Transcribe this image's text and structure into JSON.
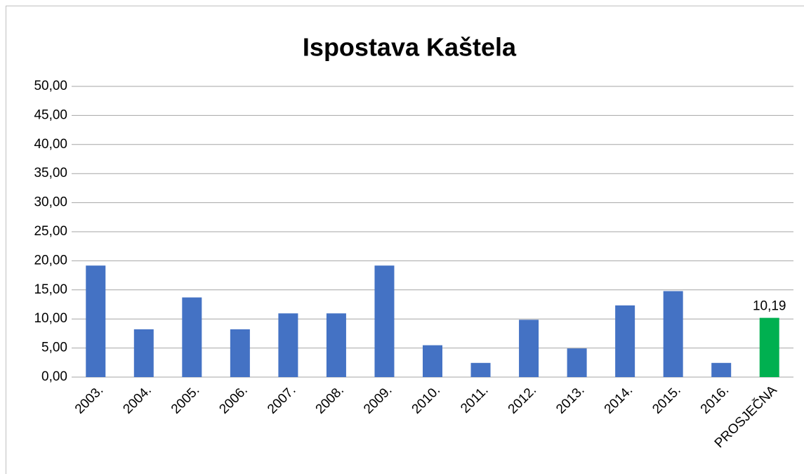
{
  "chart_data": {
    "type": "bar",
    "title": "Ispostava Kaštela",
    "categories": [
      "2003.",
      "2004.",
      "2005.",
      "2006.",
      "2007.",
      "2008.",
      "2009.",
      "2010.",
      "2011.",
      "2012.",
      "2013.",
      "2014.",
      "2015.",
      "2016.",
      "PROSJEČNA"
    ],
    "values": [
      19.18,
      8.22,
      13.7,
      8.22,
      10.96,
      10.96,
      19.18,
      5.48,
      2.44,
      9.86,
      4.93,
      12.33,
      14.79,
      2.44,
      10.19
    ],
    "value_labels": [
      null,
      null,
      null,
      null,
      null,
      null,
      null,
      null,
      null,
      null,
      null,
      null,
      null,
      null,
      "10,19"
    ],
    "colors": [
      "#4472c4",
      "#4472c4",
      "#4472c4",
      "#4472c4",
      "#4472c4",
      "#4472c4",
      "#4472c4",
      "#4472c4",
      "#4472c4",
      "#4472c4",
      "#4472c4",
      "#4472c4",
      "#4472c4",
      "#4472c4",
      "#00b050"
    ],
    "ylim": [
      0,
      50
    ],
    "yticks": [
      {
        "value": 0,
        "label": "0,00"
      },
      {
        "value": 5,
        "label": "5,00"
      },
      {
        "value": 10,
        "label": "10,00"
      },
      {
        "value": 15,
        "label": "15,00"
      },
      {
        "value": 20,
        "label": "20,00"
      },
      {
        "value": 25,
        "label": "25,00"
      },
      {
        "value": 30,
        "label": "30,00"
      },
      {
        "value": 35,
        "label": "35,00"
      },
      {
        "value": 40,
        "label": "40,00"
      },
      {
        "value": 45,
        "label": "45,00"
      },
      {
        "value": 50,
        "label": "50,00"
      }
    ],
    "grid": true
  }
}
